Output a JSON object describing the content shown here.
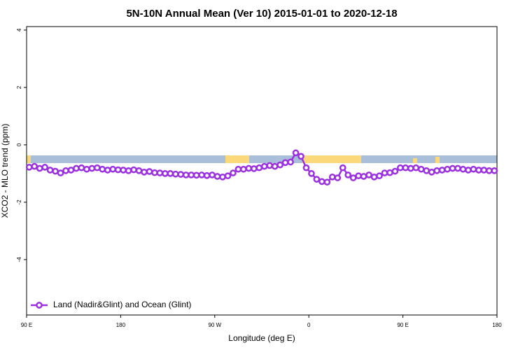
{
  "chart_data": {
    "type": "line",
    "title": "5N-10N Annual Mean (Ver 10)   2015-01-01 to 2020-12-18",
    "xlabel": "Longitude (deg E)",
    "ylabel": "XCO2 - MLO trend (ppm)",
    "x": [
      92.5,
      97.5,
      102.5,
      107.5,
      112.5,
      117.5,
      122.5,
      127.5,
      132.5,
      137.5,
      142.5,
      147.5,
      152.5,
      157.5,
      162.5,
      167.5,
      172.5,
      177.5,
      182.5,
      187.5,
      192.5,
      197.5,
      202.5,
      207.5,
      212.5,
      217.5,
      222.5,
      227.5,
      232.5,
      237.5,
      242.5,
      247.5,
      252.5,
      257.5,
      262.5,
      267.5,
      272.5,
      277.5,
      282.5,
      287.5,
      292.5,
      297.5,
      302.5,
      307.5,
      312.5,
      317.5,
      322.5,
      327.5,
      332.5,
      337.5,
      342.5,
      347.5,
      352.5,
      357.5,
      362.5,
      367.5,
      372.5,
      377.5,
      382.5,
      387.5,
      392.5,
      397.5,
      402.5,
      407.5,
      412.5,
      417.5,
      422.5,
      427.5,
      432.5,
      437.5,
      442.5,
      447.5,
      452.5,
      457.5,
      462.5,
      467.5,
      472.5,
      477.5,
      482.5,
      487.5,
      492.5,
      497.5,
      502.5,
      507.5,
      512.5,
      517.5,
      522.5,
      527.5,
      532.5,
      537.5
    ],
    "series": [
      {
        "name": "Land (Nadir&Glint) and Ocean (Glint)",
        "color": "#9b30e0",
        "values": [
          -0.78,
          -0.75,
          -0.82,
          -0.78,
          -0.88,
          -0.92,
          -0.98,
          -0.9,
          -0.88,
          -0.82,
          -0.8,
          -0.85,
          -0.82,
          -0.8,
          -0.85,
          -0.88,
          -0.85,
          -0.87,
          -0.88,
          -0.9,
          -0.87,
          -0.9,
          -0.95,
          -0.93,
          -0.97,
          -0.98,
          -1.0,
          -1.0,
          -1.02,
          -1.03,
          -1.05,
          -1.05,
          -1.06,
          -1.05,
          -1.07,
          -1.05,
          -1.1,
          -1.12,
          -1.08,
          -0.98,
          -0.85,
          -0.85,
          -0.82,
          -0.83,
          -0.8,
          -0.75,
          -0.72,
          -0.75,
          -0.7,
          -0.62,
          -0.6,
          -0.28,
          -0.4,
          -0.8,
          -1.0,
          -1.2,
          -1.28,
          -1.3,
          -1.12,
          -1.15,
          -0.8,
          -1.05,
          -1.15,
          -1.08,
          -1.1,
          -1.05,
          -1.12,
          -1.08,
          -0.98,
          -0.97,
          -0.92,
          -0.8,
          -0.8,
          -0.82,
          -0.8,
          -0.85,
          -0.9,
          -0.95,
          -0.9,
          -0.88,
          -0.85,
          -0.82,
          -0.82,
          -0.85,
          -0.88,
          -0.85,
          -0.88,
          -0.88,
          -0.9,
          -0.9
        ]
      }
    ],
    "xlim": [
      90,
      540
    ],
    "xticks": [
      {
        "value": 90,
        "label": "90 E"
      },
      180,
      {
        "value": 270,
        "label": "90 W"
      },
      {
        "value": 360,
        "label": "0"
      },
      {
        "value": 450,
        "label": "90 E"
      },
      {
        "value": 540,
        "label": "180"
      }
    ],
    "ylim": [
      -5.93,
      4.12
    ],
    "yticks": [
      -4,
      -2,
      0,
      2,
      4
    ],
    "legend": "bottom-left"
  }
}
